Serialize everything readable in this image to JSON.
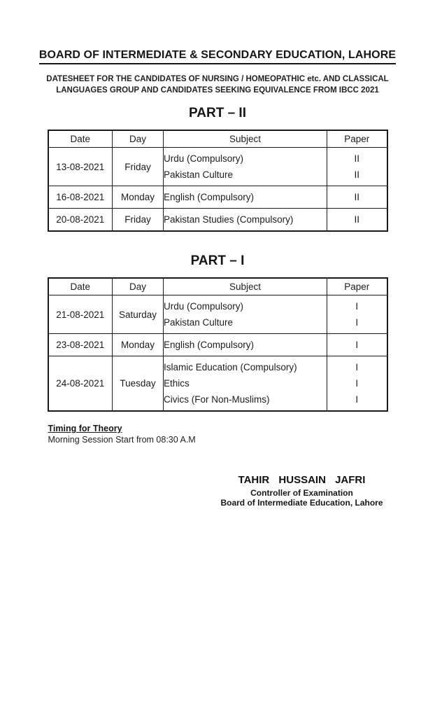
{
  "colors": {
    "ink": "#1a1a1a",
    "background": "#ffffff"
  },
  "header": {
    "title": "BOARD OF INTERMEDIATE & SECONDARY EDUCATION, LAHORE",
    "subtitle_line1": "DATESHEET FOR THE CANDIDATES OF NURSING / HOMEOPATHIC etc. AND CLASSICAL",
    "subtitle_line2": "LANGUAGES GROUP AND CANDIDATES SEEKING EQUIVALENCE FROM IBCC 2021"
  },
  "sections": [
    {
      "heading": "PART – II",
      "table": {
        "headers": [
          "Date",
          "Day",
          "Subject",
          "Paper"
        ],
        "rows": [
          {
            "date": "13-08-2021",
            "day": "Friday",
            "subjects": [
              "Urdu (Compulsory)",
              "Pakistan Culture"
            ],
            "papers": [
              "II",
              "II"
            ]
          },
          {
            "date": "16-08-2021",
            "day": "Monday",
            "subjects": [
              "English (Compulsory)"
            ],
            "papers": [
              "II"
            ]
          },
          {
            "date": "20-08-2021",
            "day": "Friday",
            "subjects": [
              "Pakistan Studies (Compulsory)"
            ],
            "papers": [
              "II"
            ]
          }
        ]
      }
    },
    {
      "heading": "PART – I",
      "table": {
        "headers": [
          "Date",
          "Day",
          "Subject",
          "Paper"
        ],
        "rows": [
          {
            "date": "21-08-2021",
            "day": "Saturday",
            "subjects": [
              "Urdu (Compulsory)",
              "Pakistan Culture"
            ],
            "papers": [
              "I",
              "I"
            ]
          },
          {
            "date": "23-08-2021",
            "day": "Monday",
            "subjects": [
              "English (Compulsory)"
            ],
            "papers": [
              "I"
            ]
          },
          {
            "date": "24-08-2021",
            "day": "Tuesday",
            "subjects": [
              "Islamic Education (Compulsory)",
              "Ethics",
              "Civics (For Non-Muslims)"
            ],
            "papers": [
              "I",
              "I",
              "I"
            ]
          }
        ]
      }
    }
  ],
  "timing": {
    "heading": "Timing for Theory",
    "detail": "Morning Session Start from 08:30 A.M"
  },
  "signature": {
    "name": "TAHIR HUSSAIN JAFRI",
    "title": "Controller of Examination",
    "organization": "Board of Intermediate Education, Lahore"
  }
}
